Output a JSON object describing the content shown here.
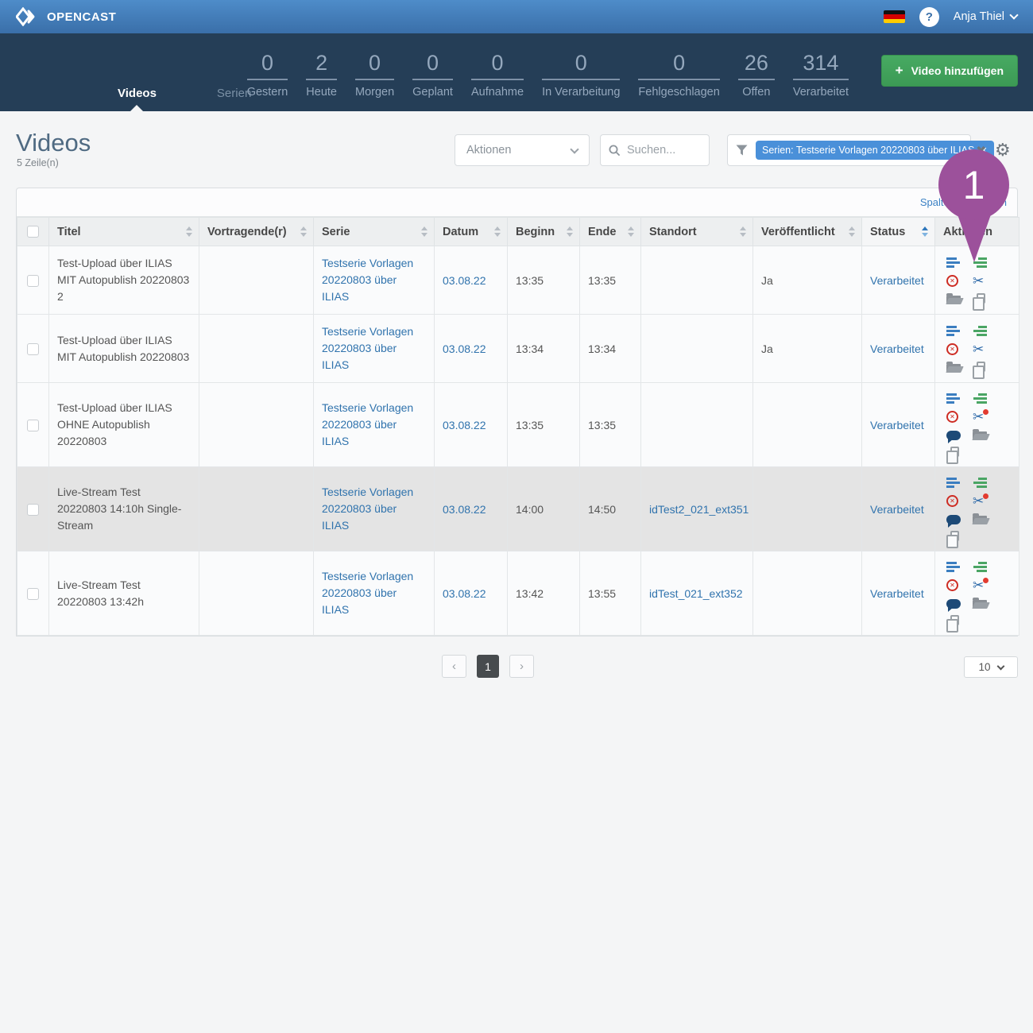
{
  "header": {
    "brand": "OPENCAST",
    "user_name": "Anja Thiel",
    "help_label": "?"
  },
  "nav": {
    "tabs": [
      {
        "label": "Videos",
        "active": true
      },
      {
        "label": "Serien",
        "active": false
      }
    ],
    "stats": [
      {
        "value": "0",
        "label": "Gestern"
      },
      {
        "value": "2",
        "label": "Heute"
      },
      {
        "value": "0",
        "label": "Morgen"
      },
      {
        "value": "0",
        "label": "Geplant"
      },
      {
        "value": "0",
        "label": "Aufnahme"
      },
      {
        "value": "0",
        "label": "In Verarbeitung"
      },
      {
        "value": "0",
        "label": "Fehlgeschlagen"
      },
      {
        "value": "26",
        "label": "Offen"
      },
      {
        "value": "314",
        "label": "Verarbeitet"
      }
    ],
    "add_video_label": "Video hinzufügen",
    "add_video_plus": "+"
  },
  "page": {
    "title": "Videos",
    "row_count": "5 Zeile(n)"
  },
  "toolbar": {
    "actions_label": "Aktionen",
    "search_placeholder": "Suchen...",
    "filter_chip": "Serien: Testserie Vorlagen 20220803 über ILIAS",
    "chip_remove": "✕",
    "clear_filters": "✖",
    "gear": "⚙",
    "columns_link": "Spalten bearbeiten"
  },
  "table": {
    "columns": [
      {
        "label": "Titel"
      },
      {
        "label": "Vortragende(r)"
      },
      {
        "label": "Serie"
      },
      {
        "label": "Datum"
      },
      {
        "label": "Beginn"
      },
      {
        "label": "Ende"
      },
      {
        "label": "Standort"
      },
      {
        "label": "Veröffentlicht"
      },
      {
        "label": "Status"
      },
      {
        "label": "Aktionen"
      }
    ],
    "rows": [
      {
        "title": "Test-Upload über ILIAS MIT Autopublish 20220803 2",
        "presenter": "",
        "series": "Testserie Vorlagen 20220803 über ILIAS",
        "date": "03.08.22",
        "start": "13:35",
        "end": "13:35",
        "location": "",
        "published": "Ja",
        "status": "Verarbeitet",
        "actions": [
          "details-icon",
          "assets-icon",
          "delete-icon",
          "cut-icon",
          "folder-icon",
          "duplicate-icon"
        ]
      },
      {
        "title": "Test-Upload über ILIAS MIT Autopublish 20220803",
        "presenter": "",
        "series": "Testserie Vorlagen 20220803 über ILIAS",
        "date": "03.08.22",
        "start": "13:34",
        "end": "13:34",
        "location": "",
        "published": "Ja",
        "status": "Verarbeitet",
        "actions": [
          "details-icon",
          "assets-icon",
          "delete-icon",
          "cut-icon",
          "folder-icon",
          "duplicate-icon"
        ]
      },
      {
        "title": "Test-Upload über ILIAS OHNE Autopublish 20220803",
        "presenter": "",
        "series": "Testserie Vorlagen 20220803 über ILIAS",
        "date": "03.08.22",
        "start": "13:35",
        "end": "13:35",
        "location": "",
        "published": "",
        "status": "Verarbeitet",
        "actions": [
          "details-icon",
          "assets-icon",
          "delete-icon",
          "cut-alert-icon",
          "comment-icon",
          "folder-icon",
          "duplicate-icon"
        ]
      },
      {
        "title": "Live-Stream Test 20220803 14:10h Single-Stream",
        "presenter": "",
        "series": "Testserie Vorlagen 20220803 über ILIAS",
        "date": "03.08.22",
        "start": "14:00",
        "end": "14:50",
        "location": "idTest2_021_ext351",
        "published": "",
        "status": "Verarbeitet",
        "actions": [
          "details-icon",
          "assets-icon",
          "delete-icon",
          "cut-alert-icon",
          "comment-icon",
          "folder-icon",
          "duplicate-icon"
        ]
      },
      {
        "title": "Live-Stream Test 20220803 13:42h",
        "presenter": "",
        "series": "Testserie Vorlagen 20220803 über ILIAS",
        "date": "03.08.22",
        "start": "13:42",
        "end": "13:55",
        "location": "idTest_021_ext352",
        "published": "",
        "status": "Verarbeitet",
        "actions": [
          "details-icon",
          "assets-icon",
          "delete-icon",
          "cut-alert-icon",
          "comment-icon",
          "folder-icon",
          "duplicate-icon"
        ]
      }
    ]
  },
  "pagination": {
    "prev": "‹",
    "current": "1",
    "next": "›",
    "page_size": "10"
  },
  "annotation": {
    "badge": "1",
    "color": "#9c519b"
  }
}
